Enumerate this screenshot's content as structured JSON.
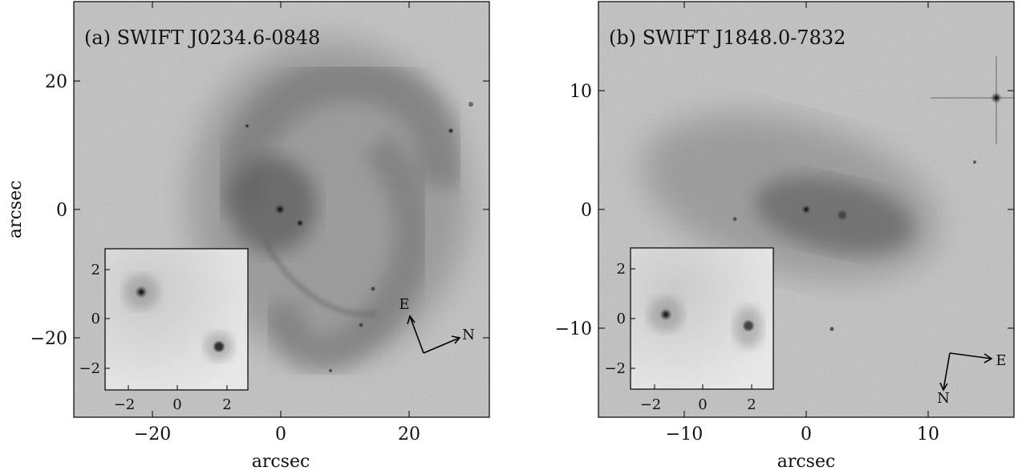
{
  "figure": {
    "shared_axis_label": "arcsec",
    "panels": [
      {
        "id": "a",
        "title": "(a) SWIFT J0234.6-0848",
        "xlabel": "arcsec",
        "ylabel": "arcsec",
        "xticks": [
          -20,
          0,
          20
        ],
        "yticks": [
          20,
          0,
          -20
        ],
        "xtick_labels": [
          "−20",
          "0",
          "20"
        ],
        "ytick_labels": [
          "20",
          "0",
          "−20"
        ],
        "xlim": [
          -32.5,
          32.5
        ],
        "ylim": [
          -32.5,
          32.5
        ],
        "compass": {
          "east": "E",
          "north": "N"
        },
        "inset": {
          "xlim": [
            -3,
            3
          ],
          "ylim": [
            -3,
            3
          ],
          "xticks": [
            -2,
            0,
            2
          ],
          "yticks": [
            2,
            0,
            -2
          ],
          "xtick_labels": [
            "−2",
            "0",
            "2"
          ],
          "ytick_labels": [
            "2",
            "0",
            "−2"
          ]
        }
      },
      {
        "id": "b",
        "title": "(b) SWIFT J1848.0-7832",
        "xlabel": "arcsec",
        "ylabel": "",
        "xticks": [
          -10,
          0,
          10
        ],
        "yticks": [
          10,
          0,
          -10
        ],
        "xtick_labels": [
          "−10",
          "0",
          "10"
        ],
        "ytick_labels": [
          "10",
          "0",
          "−10"
        ],
        "xlim": [
          -17,
          17
        ],
        "ylim": [
          -17,
          17
        ],
        "compass": {
          "east": "E",
          "north": "N"
        },
        "inset": {
          "xlim": [
            -3,
            3
          ],
          "ylim": [
            -3,
            3
          ],
          "xticks": [
            -2,
            0,
            2
          ],
          "yticks": [
            2,
            0,
            -2
          ],
          "xtick_labels": [
            "−2",
            "0",
            "2"
          ],
          "ytick_labels": [
            "2",
            "0",
            "−2"
          ]
        }
      }
    ]
  },
  "colors": {
    "background_noise": "#a8a8a8",
    "galaxy_core": "#000000",
    "axis": "#000000"
  }
}
